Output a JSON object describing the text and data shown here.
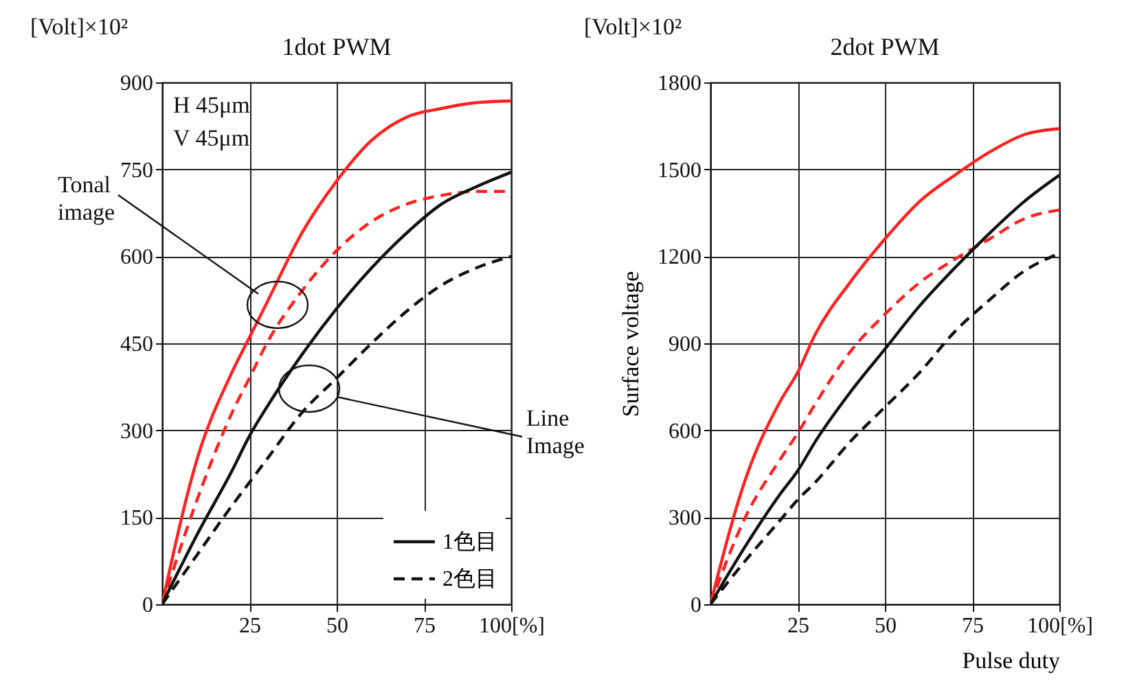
{
  "chart_data": [
    {
      "type": "line",
      "title": "1dot PWM",
      "xlim": [
        0,
        100
      ],
      "ylim": [
        0,
        900
      ],
      "xticks": [
        25,
        50,
        75,
        {
          "value": 100,
          "label": "100[%]"
        }
      ],
      "yticks": [
        0,
        150,
        300,
        450,
        600,
        750,
        900
      ],
      "grid": true,
      "legend": "bottom right",
      "marker": "none",
      "x": [
        0,
        10,
        20,
        25,
        30,
        40,
        50,
        60,
        70,
        80,
        90,
        100
      ],
      "series": [
        {
          "color": "#ff2020",
          "line_style": "solid",
          "values": [
            0,
            250,
            400,
            460,
            520,
            640,
            730,
            800,
            840,
            855,
            865,
            868
          ]
        },
        {
          "color": "#ff2020",
          "line_style": "dashed",
          "values": [
            0,
            180,
            330,
            390,
            450,
            540,
            610,
            660,
            690,
            705,
            712,
            712
          ]
        },
        {
          "name": "1色目",
          "color": "#111111",
          "line_style": "solid",
          "values": [
            0,
            120,
            230,
            290,
            340,
            430,
            510,
            580,
            640,
            690,
            720,
            745
          ]
        },
        {
          "name": "2色目",
          "color": "#111111",
          "line_style": "dashed",
          "values": [
            0,
            85,
            170,
            210,
            250,
            330,
            390,
            450,
            505,
            550,
            580,
            600
          ]
        }
      ],
      "annotations": [
        "[Volt]×10²",
        "H 45μm",
        "V 45μm",
        "Tonal image",
        "Line Image"
      ]
    },
    {
      "type": "line",
      "title": "2dot PWM",
      "ylabel": "Surface voltage",
      "xlabel": "Pulse duty",
      "xlim": [
        0,
        100
      ],
      "ylim": [
        0,
        1800
      ],
      "xticks": [
        25,
        50,
        75,
        {
          "value": 100,
          "label": "100[%]"
        }
      ],
      "yticks": [
        0,
        300,
        600,
        900,
        1200,
        1500,
        1800
      ],
      "grid": true,
      "marker": "none",
      "x": [
        0,
        10,
        20,
        25,
        30,
        40,
        50,
        60,
        70,
        80,
        90,
        100
      ],
      "series": [
        {
          "color": "#ff2020",
          "line_style": "solid",
          "values": [
            0,
            430,
            700,
            800,
            930,
            1110,
            1260,
            1390,
            1480,
            1560,
            1620,
            1640
          ]
        },
        {
          "color": "#ff2020",
          "line_style": "dashed",
          "values": [
            0,
            300,
            500,
            590,
            690,
            870,
            1000,
            1110,
            1190,
            1260,
            1330,
            1360
          ]
        },
        {
          "color": "#111111",
          "line_style": "solid",
          "values": [
            0,
            200,
            380,
            460,
            560,
            730,
            880,
            1030,
            1160,
            1280,
            1390,
            1480
          ]
        },
        {
          "color": "#111111",
          "line_style": "dashed",
          "values": [
            0,
            150,
            290,
            360,
            420,
            560,
            680,
            800,
            940,
            1050,
            1150,
            1210
          ]
        }
      ],
      "annotations": [
        "[Volt]×10²"
      ]
    }
  ]
}
